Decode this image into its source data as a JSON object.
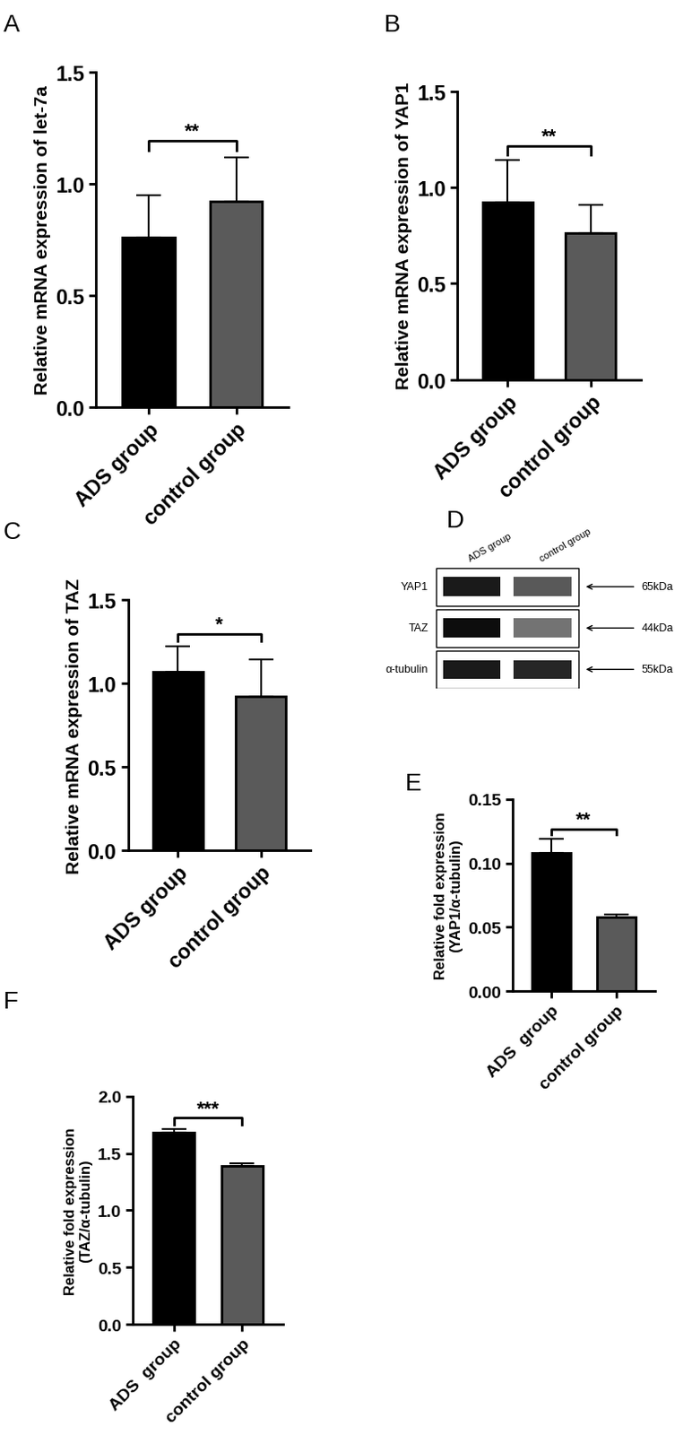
{
  "chart_data": [
    {
      "type": "bar",
      "panel": "A",
      "y_label": "Relative mRNA expression of let-7a",
      "categories": [
        "ADS group",
        "control group"
      ],
      "values": [
        0.76,
        0.92
      ],
      "errors": [
        0.19,
        0.2
      ],
      "colors": [
        "#000000",
        "#5a5a5a"
      ],
      "ylim": [
        0,
        1.5
      ],
      "yticks": [
        {
          "value": 0,
          "label": "0.0"
        },
        0.5,
        {
          "value": 1,
          "label": "1.0"
        },
        1.5
      ],
      "annotations": [
        {
          "text": "**"
        }
      ]
    },
    {
      "type": "bar",
      "panel": "B",
      "y_label": "Relative mRNA expression of YAP1",
      "categories": [
        "ADS group",
        "control group"
      ],
      "values": [
        0.92,
        0.76
      ],
      "errors": [
        0.22,
        0.15
      ],
      "colors": [
        "#000000",
        "#5a5a5a"
      ],
      "ylim": [
        0,
        1.5
      ],
      "yticks": [
        {
          "value": 0,
          "label": "0.0"
        },
        0.5,
        {
          "value": 1,
          "label": "1.0"
        },
        1.5
      ],
      "annotations": [
        {
          "text": "**"
        }
      ]
    },
    {
      "type": "bar",
      "panel": "C",
      "y_label": "Relative mRNA expression of TAZ",
      "categories": [
        "ADS group",
        "control group"
      ],
      "values": [
        1.07,
        0.92
      ],
      "errors": [
        0.15,
        0.22
      ],
      "colors": [
        "#000000",
        "#5a5a5a"
      ],
      "ylim": [
        0,
        1.5
      ],
      "yticks": [
        {
          "value": 0,
          "label": "0.0"
        },
        0.5,
        {
          "value": 1,
          "label": "1.0"
        },
        1.5
      ],
      "annotations": [
        {
          "text": "*"
        }
      ]
    },
    {
      "type": "blot",
      "panel": "D",
      "lanes": [
        "ADS group",
        "control group"
      ],
      "bands": [
        {
          "name": "YAP1",
          "size": "65kDa"
        },
        {
          "name": "TAZ",
          "size": "44kDa"
        },
        {
          "name": "α-tubulin",
          "size": "55kDa"
        }
      ]
    },
    {
      "type": "bar",
      "panel": "E",
      "y_label": "Relative fold expression\n(YAP1/α-tubulin)",
      "categories": [
        "ADS  group",
        "control group"
      ],
      "values": [
        0.108,
        0.058
      ],
      "errors": [
        0.011,
        0.002
      ],
      "colors": [
        "#000000",
        "#5a5a5a"
      ],
      "ylim": [
        0,
        0.15
      ],
      "yticks": [
        {
          "value": 0,
          "label": "0.00"
        },
        0.05,
        {
          "value": 0.1,
          "label": "0.10"
        },
        0.15
      ],
      "annotations": [
        {
          "text": "**"
        }
      ]
    },
    {
      "type": "bar",
      "panel": "F",
      "y_label": "Relative fold expression\n(TAZ/α-tubulin)",
      "categories": [
        "ADS  group",
        "control group"
      ],
      "values": [
        1.68,
        1.39
      ],
      "errors": [
        0.03,
        0.02
      ],
      "colors": [
        "#000000",
        "#5a5a5a"
      ],
      "ylim": [
        0,
        2.0
      ],
      "yticks": [
        {
          "value": 0,
          "label": "0.0"
        },
        0.5,
        {
          "value": 1,
          "label": "1.0"
        },
        1.5,
        {
          "value": 2,
          "label": "2.0"
        }
      ],
      "annotations": [
        {
          "text": "***"
        }
      ]
    }
  ]
}
